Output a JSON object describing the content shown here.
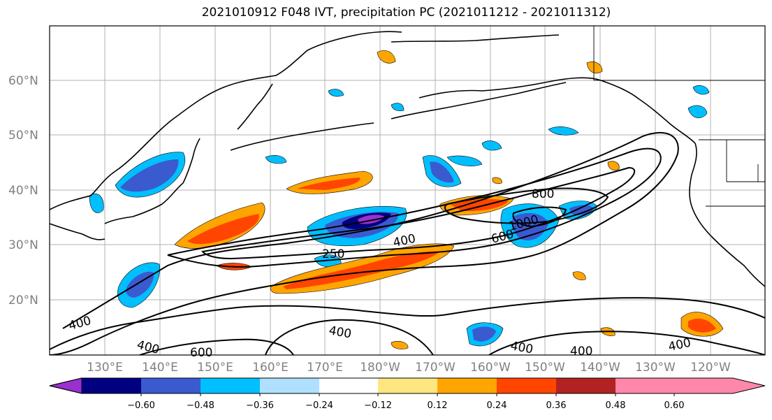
{
  "title": "2021010912 F048 IVT, precipitation PC (2021011212 - 2021011312)",
  "map": {
    "lat_labels": [
      "60°N",
      "50°N",
      "40°N",
      "30°N",
      "20°N"
    ],
    "lon_labels": [
      "130°E",
      "140°E",
      "150°E",
      "160°E",
      "170°E",
      "180°W",
      "170°W",
      "160°W",
      "150°W",
      "140°W",
      "130°W",
      "120°W"
    ],
    "contour_labels": [
      "800",
      "1000",
      "600",
      "400",
      "250",
      "400",
      "400",
      "400",
      "600",
      "400",
      "400",
      "400"
    ]
  },
  "colorbar": {
    "ticks": [
      "−0.60",
      "−0.48",
      "−0.36",
      "−0.24",
      "−0.12",
      "0.12",
      "0.24",
      "0.36",
      "0.48",
      "0.60"
    ],
    "colors": [
      "#9a30d0",
      "#000080",
      "#3a5ad0",
      "#00bfff",
      "#b0e0ff",
      "#ffffff",
      "#ffe680",
      "#ffa500",
      "#ff4500",
      "#b22222",
      "#ff88aa"
    ]
  }
}
